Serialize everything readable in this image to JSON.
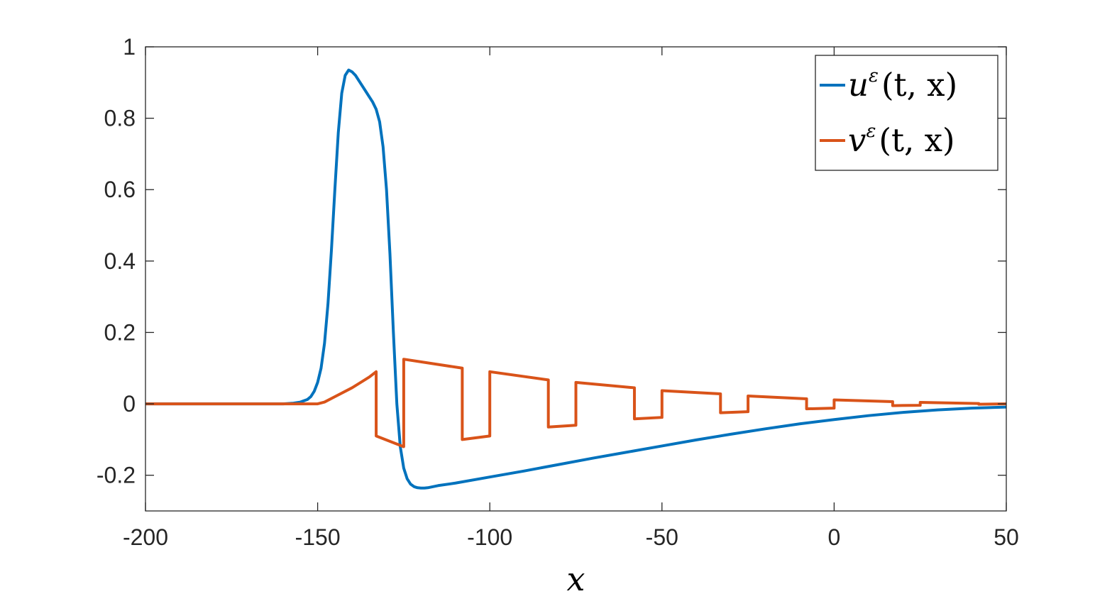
{
  "chart_data": {
    "type": "line",
    "xlabel": "x",
    "ylabel": "",
    "title": "",
    "xlim": [
      -200,
      50
    ],
    "ylim": [
      -0.3,
      1
    ],
    "xticks": [
      -200,
      -150,
      -100,
      -50,
      0,
      50
    ],
    "xtick_labels": [
      "-200",
      "-150",
      "-100",
      "-50",
      "0",
      "50"
    ],
    "yticks": [
      -0.2,
      0,
      0.2,
      0.4,
      0.6,
      0.8,
      1
    ],
    "ytick_labels": [
      "-0.2",
      "0",
      "0.2",
      "0.4",
      "0.6",
      "0.8",
      "1"
    ],
    "grid": false,
    "legend_position": "top-right",
    "series": [
      {
        "name": "uε(t, x)",
        "legend_base": "u",
        "legend_sup": "ε",
        "legend_args": "(t, x)",
        "color": "#0072BD",
        "x": [
          -200,
          -160,
          -157,
          -155,
          -153,
          -152,
          -151,
          -150,
          -149,
          -148,
          -147,
          -146,
          -145,
          -144,
          -143,
          -142,
          -141,
          -140,
          -139,
          -138,
          -137,
          -136,
          -135,
          -134,
          -133,
          -132,
          -131,
          -130,
          -129,
          -128,
          -127,
          -126,
          -125,
          -124,
          -123,
          -122,
          -121,
          -120,
          -119,
          -118,
          -117,
          -116,
          -115,
          -110,
          -100,
          -90,
          -80,
          -70,
          -60,
          -50,
          -40,
          -30,
          -20,
          -10,
          0,
          10,
          20,
          30,
          40,
          50
        ],
        "y": [
          0,
          0,
          0.002,
          0.005,
          0.012,
          0.02,
          0.035,
          0.06,
          0.1,
          0.17,
          0.28,
          0.43,
          0.6,
          0.76,
          0.87,
          0.92,
          0.935,
          0.93,
          0.92,
          0.905,
          0.89,
          0.875,
          0.86,
          0.845,
          0.825,
          0.79,
          0.72,
          0.6,
          0.42,
          0.2,
          0.0,
          -0.12,
          -0.18,
          -0.21,
          -0.225,
          -0.232,
          -0.235,
          -0.236,
          -0.236,
          -0.235,
          -0.233,
          -0.231,
          -0.229,
          -0.222,
          -0.205,
          -0.188,
          -0.17,
          -0.152,
          -0.135,
          -0.118,
          -0.101,
          -0.085,
          -0.07,
          -0.056,
          -0.044,
          -0.033,
          -0.024,
          -0.017,
          -0.012,
          -0.009
        ]
      },
      {
        "name": "vε(t, x)",
        "legend_base": "v",
        "legend_sup": "ε",
        "legend_args": "(t, x)",
        "color": "#D95319",
        "x": [
          -200,
          -155,
          -150,
          -148,
          -145,
          -140,
          -135,
          -133,
          -133,
          -125,
          -125,
          -108,
          -108,
          -100,
          -100,
          -83,
          -83,
          -75,
          -75,
          -58,
          -58,
          -50,
          -50,
          -33,
          -33,
          -25,
          -25,
          -8,
          -8,
          0,
          0,
          17,
          17,
          25,
          25,
          42,
          42,
          50
        ],
        "y": [
          0,
          0,
          0,
          0.005,
          0.02,
          0.045,
          0.075,
          0.09,
          -0.09,
          -0.12,
          0.125,
          0.1,
          -0.1,
          -0.09,
          0.09,
          0.067,
          -0.065,
          -0.06,
          0.06,
          0.045,
          -0.042,
          -0.038,
          0.037,
          0.028,
          -0.025,
          -0.022,
          0.022,
          0.014,
          -0.014,
          -0.012,
          0.011,
          0.006,
          -0.005,
          -0.004,
          0.004,
          0.001,
          -0.001,
          0.0
        ]
      }
    ]
  }
}
